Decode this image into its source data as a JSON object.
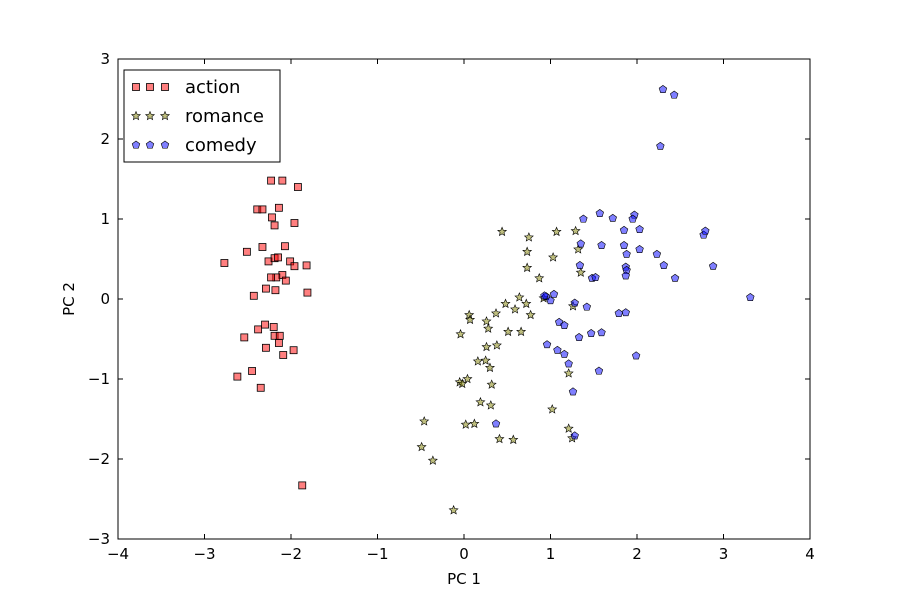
{
  "chart_data": {
    "type": "scatter",
    "title": "",
    "xlabel": "PC 1",
    "ylabel": "PC 2",
    "xlim": [
      -4,
      4
    ],
    "ylim": [
      -3,
      3
    ],
    "xticks": [
      -4,
      -3,
      -2,
      -1,
      0,
      1,
      2,
      3,
      4
    ],
    "yticks": [
      -3,
      -2,
      -1,
      0,
      1,
      2,
      3
    ],
    "xtick_labels": [
      "−4",
      "−3",
      "−2",
      "−1",
      "0",
      "1",
      "2",
      "3",
      "4"
    ],
    "ytick_labels": [
      "−3",
      "−2",
      "−1",
      "0",
      "1",
      "2",
      "3"
    ],
    "grid": false,
    "legend_position": "top-left",
    "series": [
      {
        "name": "action",
        "marker": "square",
        "color": "#ff0000",
        "points": [
          [
            -2.23,
            1.48
          ],
          [
            -2.1,
            1.48
          ],
          [
            -1.92,
            1.4
          ],
          [
            -2.39,
            1.12
          ],
          [
            -2.33,
            1.12
          ],
          [
            -2.14,
            1.14
          ],
          [
            -1.96,
            0.95
          ],
          [
            -2.19,
            0.92
          ],
          [
            -2.22,
            1.02
          ],
          [
            -2.07,
            0.66
          ],
          [
            -2.33,
            0.65
          ],
          [
            -2.51,
            0.59
          ],
          [
            -2.77,
            0.45
          ],
          [
            -2.26,
            0.47
          ],
          [
            -2.19,
            0.51
          ],
          [
            -2.15,
            0.52
          ],
          [
            -2.1,
            0.3
          ],
          [
            -2.01,
            0.47
          ],
          [
            -1.96,
            0.41
          ],
          [
            -1.82,
            0.42
          ],
          [
            -2.17,
            0.27
          ],
          [
            -2.23,
            0.27
          ],
          [
            -2.06,
            0.23
          ],
          [
            -2.29,
            0.13
          ],
          [
            -2.18,
            0.11
          ],
          [
            -2.43,
            0.04
          ],
          [
            -1.81,
            0.08
          ],
          [
            -2.38,
            -0.38
          ],
          [
            -2.3,
            -0.32
          ],
          [
            -2.2,
            -0.35
          ],
          [
            -2.54,
            -0.48
          ],
          [
            -2.19,
            -0.46
          ],
          [
            -2.13,
            -0.46
          ],
          [
            -2.14,
            -0.55
          ],
          [
            -2.29,
            -0.61
          ],
          [
            -2.09,
            -0.7
          ],
          [
            -1.97,
            -0.64
          ],
          [
            -2.62,
            -0.97
          ],
          [
            -2.45,
            -0.9
          ],
          [
            -2.35,
            -1.11
          ],
          [
            -1.87,
            -2.33
          ]
        ]
      },
      {
        "name": "romance",
        "marker": "star",
        "color": "#808000",
        "points": [
          [
            0.44,
            0.84
          ],
          [
            0.75,
            0.77
          ],
          [
            1.07,
            0.84
          ],
          [
            1.29,
            0.85
          ],
          [
            0.73,
            0.59
          ],
          [
            1.32,
            0.62
          ],
          [
            1.03,
            0.52
          ],
          [
            0.73,
            0.39
          ],
          [
            1.35,
            0.33
          ],
          [
            0.87,
            0.26
          ],
          [
            0.64,
            0.02
          ],
          [
            0.48,
            -0.06
          ],
          [
            0.72,
            -0.06
          ],
          [
            1.26,
            -0.09
          ],
          [
            0.92,
            0.01
          ],
          [
            0.06,
            -0.2
          ],
          [
            0.26,
            -0.28
          ],
          [
            0.37,
            -0.18
          ],
          [
            0.59,
            -0.13
          ],
          [
            0.77,
            -0.2
          ],
          [
            0.07,
            -0.26
          ],
          [
            0.28,
            -0.37
          ],
          [
            0.66,
            -0.41
          ],
          [
            -0.04,
            -0.44
          ],
          [
            0.51,
            -0.41
          ],
          [
            0.26,
            -0.6
          ],
          [
            0.38,
            -0.58
          ],
          [
            0.16,
            -0.78
          ],
          [
            0.25,
            -0.77
          ],
          [
            0.3,
            -0.86
          ],
          [
            0.04,
            -1.0
          ],
          [
            -0.05,
            -1.04
          ],
          [
            -0.02,
            -1.06
          ],
          [
            0.32,
            -1.07
          ],
          [
            0.19,
            -1.29
          ],
          [
            0.31,
            -1.33
          ],
          [
            1.02,
            -1.38
          ],
          [
            0.02,
            -1.57
          ],
          [
            0.12,
            -1.56
          ],
          [
            1.21,
            -1.62
          ],
          [
            1.25,
            -1.74
          ],
          [
            0.41,
            -1.75
          ],
          [
            0.57,
            -1.76
          ],
          [
            -0.46,
            -1.53
          ],
          [
            -0.49,
            -1.85
          ],
          [
            -0.36,
            -2.02
          ],
          [
            -0.12,
            -2.64
          ],
          [
            1.21,
            -0.93
          ]
        ]
      },
      {
        "name": "comedy",
        "marker": "pentagon",
        "color": "#0000ff",
        "points": [
          [
            2.3,
            2.62
          ],
          [
            2.43,
            2.55
          ],
          [
            2.27,
            1.91
          ],
          [
            1.38,
            1.0
          ],
          [
            1.57,
            1.07
          ],
          [
            1.72,
            1.01
          ],
          [
            1.97,
            1.05
          ],
          [
            1.95,
            1.0
          ],
          [
            1.35,
            0.69
          ],
          [
            1.59,
            0.67
          ],
          [
            1.85,
            0.86
          ],
          [
            2.03,
            0.87
          ],
          [
            2.77,
            0.8
          ],
          [
            2.79,
            0.85
          ],
          [
            1.85,
            0.67
          ],
          [
            2.03,
            0.62
          ],
          [
            1.88,
            0.56
          ],
          [
            2.23,
            0.56
          ],
          [
            1.87,
            0.4
          ],
          [
            1.88,
            0.36
          ],
          [
            2.31,
            0.42
          ],
          [
            2.88,
            0.41
          ],
          [
            1.34,
            0.42
          ],
          [
            1.87,
            0.29
          ],
          [
            1.48,
            0.26
          ],
          [
            1.52,
            0.27
          ],
          [
            2.44,
            0.26
          ],
          [
            0.95,
            0.03
          ],
          [
            0.93,
            0.04
          ],
          [
            1.0,
            -0.02
          ],
          [
            1.04,
            0.06
          ],
          [
            1.28,
            -0.05
          ],
          [
            1.42,
            -0.1
          ],
          [
            3.31,
            0.02
          ],
          [
            1.1,
            -0.29
          ],
          [
            1.16,
            -0.33
          ],
          [
            1.33,
            -0.48
          ],
          [
            1.47,
            -0.43
          ],
          [
            1.59,
            -0.42
          ],
          [
            1.79,
            -0.18
          ],
          [
            1.87,
            -0.17
          ],
          [
            0.96,
            -0.57
          ],
          [
            1.08,
            -0.64
          ],
          [
            1.16,
            -0.69
          ],
          [
            1.21,
            -0.81
          ],
          [
            1.56,
            -0.9
          ],
          [
            1.99,
            -0.71
          ],
          [
            1.26,
            -1.16
          ],
          [
            0.37,
            -1.56
          ],
          [
            1.28,
            -1.71
          ]
        ]
      }
    ]
  }
}
